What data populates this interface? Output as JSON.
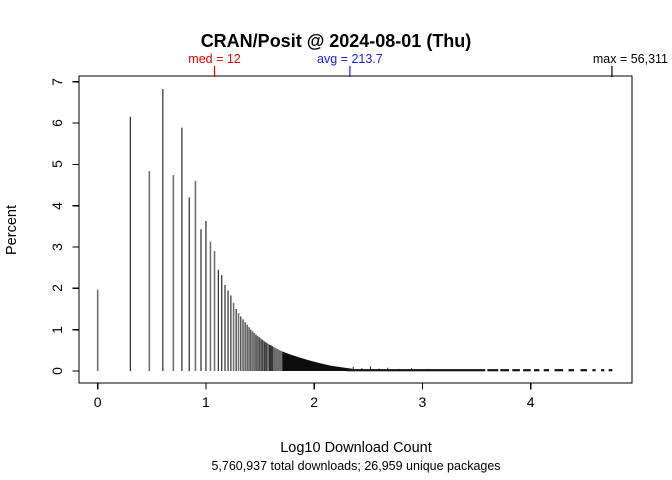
{
  "title": "CRAN/Posit @ 2024-08-01 (Thu)",
  "subtitle": "5,760,937 total downloads; 26,959 unique packages",
  "annotations": {
    "med": {
      "label": "med = 12",
      "value": 12,
      "value_log10": 1.0792,
      "color": "#e60000"
    },
    "avg": {
      "label": "avg = 213.7",
      "value": 213.7,
      "value_log10": 2.3298,
      "color": "#1a1aff"
    },
    "max": {
      "label": "max = 56,311",
      "value": 56311,
      "value_log10": 4.7506,
      "color": "#000000"
    }
  },
  "x_axis": {
    "label": "Log10 Download Count",
    "ticks": [
      0,
      1,
      2,
      3,
      4
    ],
    "range": [
      -0.17,
      4.94
    ]
  },
  "y_axis": {
    "label": "Percent",
    "ticks": [
      0,
      1,
      2,
      3,
      4,
      5,
      6,
      7
    ],
    "range": [
      0,
      7.1
    ]
  },
  "stats": {
    "total_downloads": "5,760,937",
    "unique_packages": "26,959",
    "median": 12,
    "average": 213.7,
    "max": 56311
  },
  "chart_data": {
    "type": "bar",
    "title": "CRAN/Posit @ 2024-08-01 (Thu)",
    "xlabel": "Log10 Download Count",
    "ylabel": "Percent",
    "x_encoding": "log10(download_count)",
    "grid": false,
    "legend": "none",
    "spikes_pct_by_count": [
      [
        1,
        1.97
      ],
      [
        2,
        6.15
      ],
      [
        3,
        4.84
      ],
      [
        4,
        6.82
      ],
      [
        5,
        4.74
      ],
      [
        6,
        5.89
      ],
      [
        7,
        4.2
      ],
      [
        8,
        4.6
      ],
      [
        9,
        3.43
      ],
      [
        10,
        3.63
      ],
      [
        11,
        3.13
      ],
      [
        12,
        2.9
      ],
      [
        13,
        2.45
      ],
      [
        14,
        2.32
      ],
      [
        15,
        2.08
      ],
      [
        16,
        1.95
      ],
      [
        17,
        1.83
      ],
      [
        18,
        1.65
      ],
      [
        19,
        1.5
      ],
      [
        20,
        1.4
      ],
      [
        21,
        1.32
      ],
      [
        22,
        1.25
      ],
      [
        23,
        1.18
      ],
      [
        24,
        1.12
      ],
      [
        25,
        1.06
      ],
      [
        26,
        1.0
      ],
      [
        27,
        0.96
      ],
      [
        28,
        0.92
      ],
      [
        29,
        0.88
      ],
      [
        30,
        0.85
      ],
      [
        31,
        0.82
      ],
      [
        32,
        0.79
      ],
      [
        33,
        0.76
      ],
      [
        34,
        0.74
      ],
      [
        35,
        0.71
      ],
      [
        36,
        0.69
      ],
      [
        37,
        0.67
      ],
      [
        38,
        0.65
      ],
      [
        39,
        0.63
      ],
      [
        40,
        0.62
      ],
      [
        41,
        0.6
      ],
      [
        42,
        0.58
      ],
      [
        43,
        0.57
      ],
      [
        44,
        0.55
      ],
      [
        45,
        0.54
      ],
      [
        46,
        0.53
      ],
      [
        47,
        0.51
      ],
      [
        48,
        0.5
      ],
      [
        49,
        0.49
      ],
      [
        50,
        0.48
      ]
    ],
    "wedge_envelope_log10_pct": [
      [
        1.7,
        0.48
      ],
      [
        1.78,
        0.4
      ],
      [
        1.86,
        0.33
      ],
      [
        1.95,
        0.26
      ],
      [
        2.05,
        0.19
      ],
      [
        2.15,
        0.13
      ],
      [
        2.25,
        0.09
      ],
      [
        2.35,
        0.055
      ]
    ],
    "tail_spikes_log10_pct": [
      [
        2.36,
        0.1
      ],
      [
        2.44,
        0.07
      ],
      [
        2.52,
        0.11
      ],
      [
        2.6,
        0.06
      ],
      [
        2.68,
        0.08
      ],
      [
        2.78,
        0.05
      ],
      [
        2.9,
        0.07
      ],
      [
        3.05,
        0.05
      ],
      [
        3.22,
        0.04
      ],
      [
        3.42,
        0.04
      ],
      [
        3.65,
        0.03
      ]
    ],
    "baseline_band_segments_log10": [
      [
        2.3,
        3.58
      ],
      [
        3.6,
        3.7
      ],
      [
        3.72,
        3.8
      ],
      [
        3.83,
        3.9
      ],
      [
        3.93,
        4.0
      ],
      [
        4.03,
        4.08
      ],
      [
        4.12,
        4.17
      ],
      [
        4.22,
        4.3
      ],
      [
        4.35,
        4.4
      ],
      [
        4.46,
        4.52
      ],
      [
        4.57,
        4.6
      ],
      [
        4.65,
        4.68
      ],
      [
        4.72,
        4.755
      ]
    ]
  }
}
